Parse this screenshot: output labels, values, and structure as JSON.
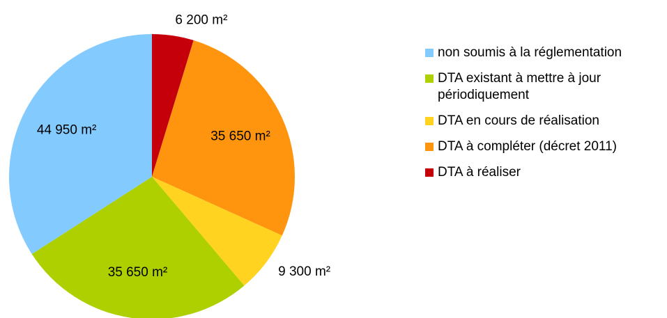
{
  "chart_data": {
    "type": "pie",
    "categories": [
      "non soumis à la réglementation",
      "DTA existant à mettre à jour périodiquement",
      "DTA en cours de réalisation",
      "DTA à compléter (décret 2011)",
      "DTA à réaliser"
    ],
    "values": [
      44950,
      35650,
      9300,
      35650,
      6200
    ],
    "value_labels": [
      "44 950 m²",
      "35 650 m²",
      "9 300 m²",
      "35 650 m²",
      "6 200 m²"
    ],
    "colors": [
      "#83caff",
      "#aecf00",
      "#ffd320",
      "#ff950e",
      "#c5000b"
    ],
    "legend": "right"
  }
}
